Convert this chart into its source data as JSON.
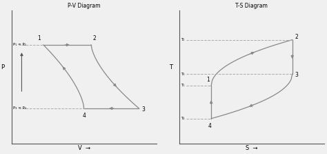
{
  "fig_width": 4.74,
  "fig_height": 2.23,
  "bg_color": "#f0f0f0",
  "line_color": "#888888",
  "dashed_color": "#aaaaaa",
  "pv": {
    "title": "P-V Diagram",
    "xlabel": "V",
    "ylabel": "P",
    "label_p1": "P₁ = P₂",
    "label_p2": "P₃ = P₄",
    "p_high": 0.78,
    "p_low": 0.28,
    "v1": 0.22,
    "v2": 0.55,
    "v3": 0.88,
    "v4": 0.5
  },
  "ts": {
    "title": "T-S Diagram",
    "xlabel": "S",
    "ylabel": "T",
    "label_t1": "T₁",
    "label_t2": "T₂",
    "label_t3": "T₃",
    "label_t4": "T₄",
    "t2": 0.82,
    "t3": 0.55,
    "t1": 0.46,
    "t4": 0.2,
    "s1": 0.22,
    "s2": 0.78
  }
}
